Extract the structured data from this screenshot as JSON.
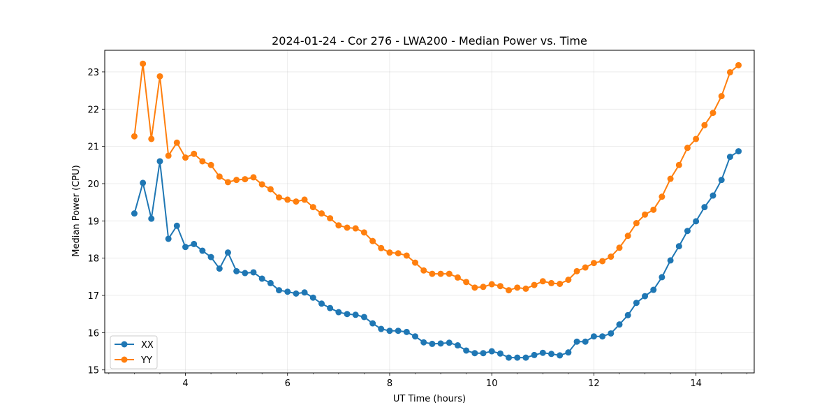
{
  "chart_data": {
    "type": "line",
    "title": "2024-01-24 - Cor 276 - LWA200 - Median Power vs. Time",
    "xlabel": "UT Time (hours)",
    "ylabel": "Median Power (CPU)",
    "xlim": [
      2.42,
      15.14
    ],
    "ylim": [
      14.92,
      23.58
    ],
    "xticks": [
      4,
      6,
      8,
      10,
      12,
      14
    ],
    "xtick_labels": [
      "4",
      "6",
      "8",
      "10",
      "12",
      "14"
    ],
    "yticks": [
      15,
      16,
      17,
      18,
      19,
      20,
      21,
      22,
      23
    ],
    "ytick_labels": [
      "15",
      "16",
      "17",
      "18",
      "19",
      "20",
      "21",
      "22",
      "23"
    ],
    "grid": true,
    "legend_position": "lower-left",
    "x": [
      3.0,
      3.167,
      3.333,
      3.5,
      3.667,
      3.833,
      4.0,
      4.167,
      4.333,
      4.5,
      4.667,
      4.833,
      5.0,
      5.167,
      5.333,
      5.5,
      5.667,
      5.833,
      6.0,
      6.167,
      6.333,
      6.5,
      6.667,
      6.833,
      7.0,
      7.167,
      7.333,
      7.5,
      7.667,
      7.833,
      8.0,
      8.167,
      8.333,
      8.5,
      8.667,
      8.833,
      9.0,
      9.167,
      9.333,
      9.5,
      9.667,
      9.833,
      10.0,
      10.167,
      10.333,
      10.5,
      10.667,
      10.833,
      11.0,
      11.167,
      11.333,
      11.5,
      11.667,
      11.833,
      12.0,
      12.167,
      12.333,
      12.5,
      12.667,
      12.833,
      13.0,
      13.167,
      13.333,
      13.5,
      13.667,
      13.833,
      14.0,
      14.167,
      14.333,
      14.5,
      14.667,
      14.833
    ],
    "series": [
      {
        "name": "XX",
        "color": "#1f77b4",
        "values": [
          19.2,
          20.02,
          19.06,
          20.6,
          18.52,
          18.87,
          18.3,
          18.38,
          18.2,
          18.03,
          17.72,
          18.15,
          17.65,
          17.6,
          17.62,
          17.45,
          17.33,
          17.14,
          17.1,
          17.05,
          17.08,
          16.94,
          16.78,
          16.66,
          16.55,
          16.5,
          16.48,
          16.42,
          16.25,
          16.1,
          16.05,
          16.05,
          16.02,
          15.9,
          15.74,
          15.7,
          15.71,
          15.73,
          15.66,
          15.52,
          15.45,
          15.45,
          15.5,
          15.44,
          15.33,
          15.33,
          15.33,
          15.4,
          15.46,
          15.43,
          15.39,
          15.47,
          15.76,
          15.76,
          15.9,
          15.9,
          15.98,
          16.22,
          16.47,
          16.8,
          16.98,
          17.15,
          17.49,
          17.94,
          18.32,
          18.73,
          18.99,
          19.37,
          19.68,
          20.1,
          20.72,
          20.87
        ]
      },
      {
        "name": "YY",
        "color": "#ff7f0e",
        "values": [
          21.27,
          23.22,
          21.2,
          22.88,
          20.75,
          21.1,
          20.7,
          20.8,
          20.6,
          20.5,
          20.19,
          20.04,
          20.1,
          20.12,
          20.17,
          19.98,
          19.85,
          19.63,
          19.57,
          19.52,
          19.57,
          19.37,
          19.2,
          19.07,
          18.88,
          18.82,
          18.8,
          18.69,
          18.46,
          18.27,
          18.15,
          18.13,
          18.07,
          17.88,
          17.67,
          17.58,
          17.58,
          17.58,
          17.48,
          17.36,
          17.21,
          17.23,
          17.3,
          17.25,
          17.14,
          17.21,
          17.18,
          17.28,
          17.38,
          17.33,
          17.31,
          17.42,
          17.65,
          17.75,
          17.87,
          17.92,
          18.04,
          18.28,
          18.6,
          18.94,
          19.17,
          19.3,
          19.65,
          20.13,
          20.5,
          20.96,
          21.2,
          21.57,
          21.9,
          22.35,
          22.99,
          23.18
        ]
      }
    ]
  }
}
